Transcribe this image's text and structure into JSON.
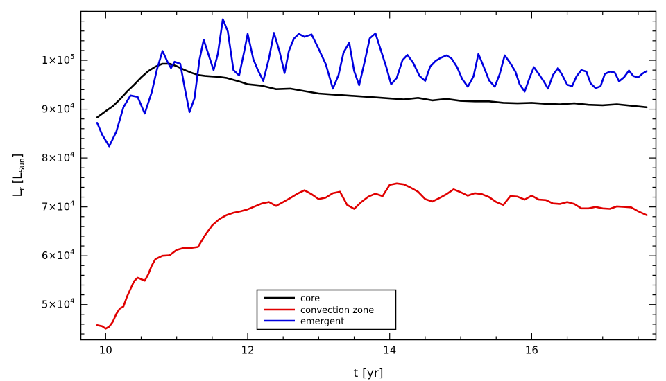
{
  "chart_data": {
    "type": "line",
    "xlabel": {
      "main": "t",
      "unit": "[yr]"
    },
    "ylabel": {
      "main": "L",
      "sub": "r",
      "unit_main": "L",
      "unit_sub": "Sun"
    },
    "xlim": [
      9.65,
      17.75
    ],
    "ylim": [
      42800,
      110000
    ],
    "xticks": [
      {
        "value": 10,
        "label": "10"
      },
      {
        "value": 12,
        "label": "12"
      },
      {
        "value": 14,
        "label": "14"
      },
      {
        "value": 16,
        "label": "16"
      }
    ],
    "yticks": [
      {
        "value": 50000,
        "mant": "5",
        "base": "×10",
        "exp": "4"
      },
      {
        "value": 60000,
        "mant": "6",
        "base": "×10",
        "exp": "4"
      },
      {
        "value": 70000,
        "mant": "7",
        "base": "×10",
        "exp": "4"
      },
      {
        "value": 80000,
        "mant": "8",
        "base": "×10",
        "exp": "4"
      },
      {
        "value": 90000,
        "mant": "9",
        "base": "×10",
        "exp": "4"
      },
      {
        "value": 100000,
        "mant": "1",
        "base": "×10",
        "exp": "5"
      }
    ],
    "grid": false,
    "legend_position": "bottom-center",
    "series": [
      {
        "name": "core",
        "color": "#000000",
        "x": [
          9.88,
          10.0,
          10.1,
          10.2,
          10.3,
          10.4,
          10.5,
          10.6,
          10.7,
          10.8,
          10.9,
          11.0,
          11.1,
          11.2,
          11.3,
          11.4,
          11.5,
          11.6,
          11.7,
          11.8,
          11.9,
          12.0,
          12.2,
          12.4,
          12.6,
          12.8,
          13.0,
          13.2,
          13.4,
          13.6,
          13.8,
          14.0,
          14.2,
          14.4,
          14.6,
          14.8,
          15.0,
          15.2,
          15.4,
          15.6,
          15.8,
          16.0,
          16.2,
          16.4,
          16.6,
          16.8,
          17.0,
          17.2,
          17.4,
          17.62
        ],
        "y": [
          88300,
          89600,
          90600,
          92000,
          93600,
          95000,
          96500,
          97800,
          98700,
          99300,
          99300,
          98800,
          98100,
          97500,
          97000,
          96800,
          96700,
          96600,
          96400,
          96000,
          95600,
          95100,
          94800,
          94100,
          94200,
          93700,
          93200,
          93000,
          92800,
          92600,
          92400,
          92200,
          92000,
          92300,
          91800,
          92100,
          91700,
          91600,
          91600,
          91300,
          91200,
          91300,
          91100,
          91000,
          91200,
          90900,
          90800,
          91000,
          90700,
          90400
        ]
      },
      {
        "name": "convection zone",
        "color": "#e00000",
        "x": [
          9.88,
          9.95,
          10.0,
          10.05,
          10.1,
          10.15,
          10.2,
          10.25,
          10.3,
          10.35,
          10.4,
          10.45,
          10.5,
          10.55,
          10.6,
          10.65,
          10.7,
          10.8,
          10.9,
          11.0,
          11.1,
          11.2,
          11.3,
          11.4,
          11.5,
          11.6,
          11.7,
          11.8,
          11.9,
          12.0,
          12.1,
          12.2,
          12.3,
          12.4,
          12.5,
          12.6,
          12.7,
          12.8,
          12.9,
          13.0,
          13.1,
          13.2,
          13.3,
          13.4,
          13.5,
          13.6,
          13.7,
          13.8,
          13.9,
          14.0,
          14.1,
          14.2,
          14.3,
          14.4,
          14.5,
          14.6,
          14.7,
          14.8,
          14.9,
          15.0,
          15.1,
          15.2,
          15.3,
          15.4,
          15.5,
          15.6,
          15.7,
          15.8,
          15.9,
          16.0,
          16.1,
          16.2,
          16.3,
          16.4,
          16.5,
          16.6,
          16.7,
          16.8,
          16.9,
          17.0,
          17.1,
          17.2,
          17.3,
          17.4,
          17.5,
          17.62
        ],
        "y": [
          45800,
          45600,
          45100,
          45500,
          46500,
          48100,
          49200,
          49600,
          51600,
          53200,
          54800,
          55500,
          55200,
          54900,
          56200,
          58000,
          59300,
          60000,
          60100,
          61200,
          61600,
          61600,
          61800,
          64200,
          66200,
          67500,
          68300,
          68800,
          69100,
          69500,
          70100,
          70700,
          71000,
          70200,
          71000,
          71800,
          72700,
          73400,
          72600,
          71600,
          71900,
          72800,
          73100,
          70400,
          69600,
          71000,
          72100,
          72700,
          72200,
          74500,
          74800,
          74600,
          73900,
          73100,
          71600,
          71100,
          71800,
          72600,
          73600,
          73000,
          72300,
          72800,
          72600,
          72000,
          71000,
          70400,
          72200,
          72100,
          71500,
          72300,
          71500,
          71400,
          70700,
          70600,
          71000,
          70600,
          69700,
          69700,
          70000,
          69700,
          69600,
          70100,
          70000,
          69900,
          69100,
          68300
        ]
      },
      {
        "name": "emergent",
        "color": "#0000e0",
        "x": [
          9.88,
          9.95,
          10.05,
          10.15,
          10.25,
          10.35,
          10.45,
          10.55,
          10.65,
          10.72,
          10.8,
          10.87,
          10.92,
          10.97,
          11.05,
          11.12,
          11.18,
          11.25,
          11.32,
          11.38,
          11.45,
          11.52,
          11.58,
          11.65,
          11.72,
          11.8,
          11.88,
          11.95,
          12.0,
          12.08,
          12.15,
          12.22,
          12.3,
          12.37,
          12.45,
          12.52,
          12.58,
          12.65,
          12.72,
          12.8,
          12.9,
          13.0,
          13.1,
          13.2,
          13.28,
          13.35,
          13.43,
          13.5,
          13.57,
          13.65,
          13.72,
          13.8,
          13.87,
          13.95,
          14.02,
          14.1,
          14.18,
          14.25,
          14.33,
          14.42,
          14.5,
          14.57,
          14.65,
          14.72,
          14.8,
          14.87,
          14.95,
          15.02,
          15.1,
          15.18,
          15.25,
          15.33,
          15.4,
          15.48,
          15.55,
          15.62,
          15.7,
          15.77,
          15.83,
          15.9,
          15.97,
          16.03,
          16.1,
          16.17,
          16.23,
          16.3,
          16.37,
          16.43,
          16.5,
          16.57,
          16.63,
          16.7,
          16.77,
          16.83,
          16.9,
          16.97,
          17.03,
          17.1,
          17.17,
          17.23,
          17.3,
          17.37,
          17.43,
          17.5,
          17.56,
          17.62
        ],
        "y": [
          87200,
          84800,
          82400,
          85400,
          90400,
          92800,
          92500,
          89100,
          93500,
          98000,
          101900,
          99700,
          98400,
          99700,
          99300,
          93900,
          89400,
          92200,
          100000,
          104200,
          101100,
          98000,
          101300,
          108400,
          105900,
          98000,
          96900,
          101700,
          105400,
          100200,
          97800,
          95800,
          100400,
          105600,
          101700,
          97400,
          101900,
          104400,
          105400,
          104800,
          105300,
          102300,
          99200,
          94200,
          97000,
          101600,
          103600,
          97800,
          94900,
          99900,
          104500,
          105500,
          102300,
          98700,
          95100,
          96400,
          100000,
          101100,
          99500,
          96800,
          95800,
          98700,
          99900,
          100500,
          101000,
          100400,
          98600,
          96200,
          94600,
          96700,
          101300,
          98500,
          95900,
          94600,
          97200,
          101000,
          99400,
          97700,
          95100,
          93600,
          96400,
          98600,
          97200,
          95700,
          94200,
          97000,
          98400,
          97000,
          95000,
          94700,
          96700,
          98000,
          97700,
          95300,
          94300,
          94700,
          97200,
          97700,
          97500,
          95700,
          96500,
          97900,
          96800,
          96500,
          97300,
          97800
        ]
      }
    ]
  }
}
